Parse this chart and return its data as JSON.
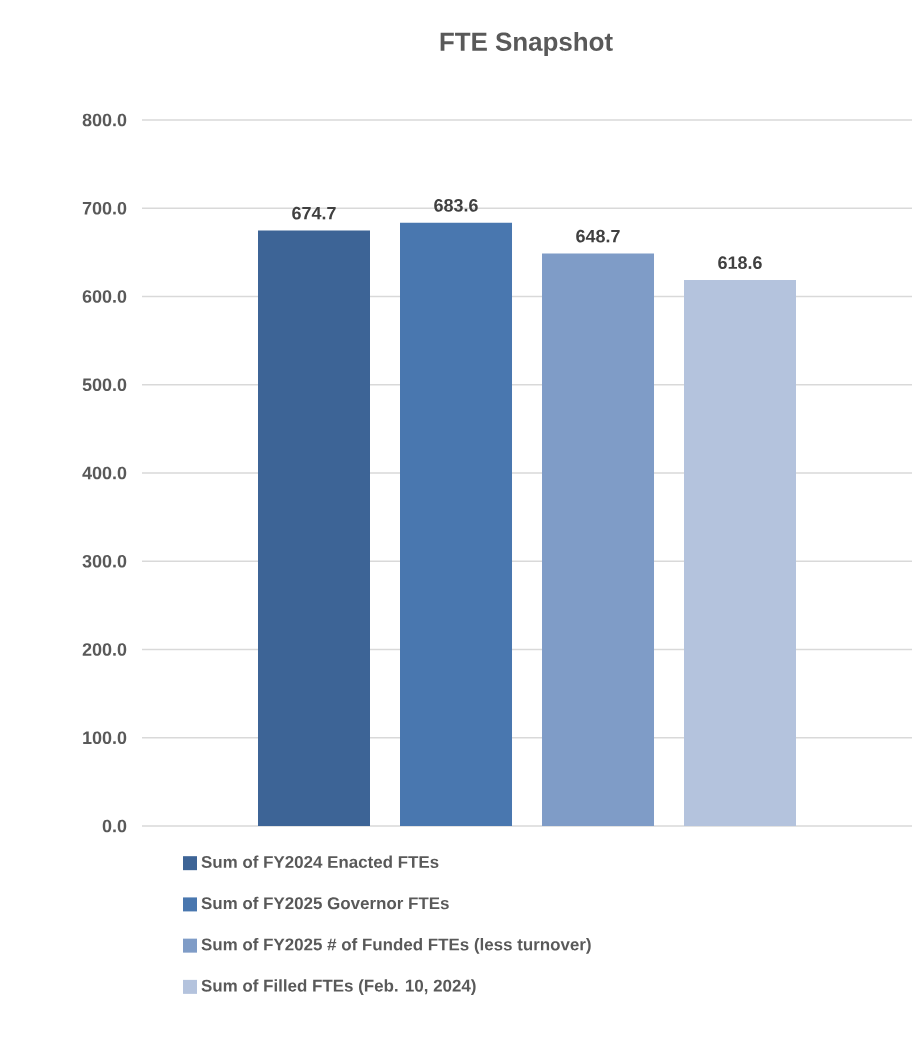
{
  "chart_data": {
    "type": "bar",
    "title": "FTE Snapshot",
    "categories": [
      null
    ],
    "series": [
      {
        "name": "Sum of FY2024 Enacted FTEs",
        "color": "#3d6496",
        "values": [
          674.7
        ]
      },
      {
        "name": "Sum of FY2025 Governor FTEs",
        "color": "#4977af",
        "values": [
          683.6
        ]
      },
      {
        "name": "Sum of FY2025 # of Funded FTEs (less turnover)",
        "color": "#7f9cc7",
        "values": [
          648.7
        ]
      },
      {
        "name": "Sum of Filled FTEs (Feb. 10, 2024)",
        "color": "#b4c3dd",
        "values": [
          618.6
        ]
      }
    ],
    "ylim": [
      0,
      800
    ],
    "yticks": [
      {
        "value": 0,
        "label": "0.0"
      },
      {
        "value": 100,
        "label": "100.0"
      },
      {
        "value": 200,
        "label": "200.0"
      },
      {
        "value": 300,
        "label": "300.0"
      },
      {
        "value": 400,
        "label": "400.0"
      },
      {
        "value": 500,
        "label": "500.0"
      },
      {
        "value": 600,
        "label": "600.0"
      },
      {
        "value": 700,
        "label": "700.0"
      },
      {
        "value": 800,
        "label": "800.0"
      }
    ],
    "grid": "y",
    "legend": "bottom",
    "data_labels": true
  }
}
